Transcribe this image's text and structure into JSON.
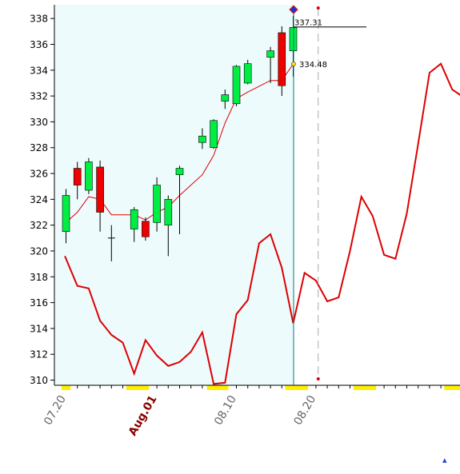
{
  "chart_data": {
    "type": "candlestick",
    "y_axis": {
      "min": 309.6,
      "max": 339.0,
      "ticks": [
        310,
        312,
        314,
        316,
        318,
        320,
        322,
        324,
        326,
        328,
        330,
        332,
        334,
        336,
        338
      ]
    },
    "x_labels": [
      {
        "text": "07.20",
        "slot": 0,
        "emphasis": false
      },
      {
        "text": "Aug.01",
        "slot": 8,
        "emphasis": true
      },
      {
        "text": "08.10",
        "slot": 15,
        "emphasis": false
      },
      {
        "text": "08.20",
        "slot": 22,
        "emphasis": false
      }
    ],
    "candles": [
      {
        "slot": 0,
        "open": 321.5,
        "high": 324.8,
        "low": 320.6,
        "close": 324.3
      },
      {
        "slot": 1,
        "open": 326.4,
        "high": 326.9,
        "low": 324.0,
        "close": 325.1
      },
      {
        "slot": 2,
        "open": 324.7,
        "high": 327.2,
        "low": 324.4,
        "close": 326.9
      },
      {
        "slot": 3,
        "open": 326.5,
        "high": 327.0,
        "low": 321.5,
        "close": 323.0
      },
      {
        "slot": 4,
        "open": 321.0,
        "high": 322.0,
        "low": 319.2,
        "close": 321.0
      },
      {
        "slot": 6,
        "open": 321.7,
        "high": 323.4,
        "low": 320.7,
        "close": 323.2
      },
      {
        "slot": 7,
        "open": 322.3,
        "high": 322.6,
        "low": 320.8,
        "close": 321.1
      },
      {
        "slot": 8,
        "open": 322.2,
        "high": 325.7,
        "low": 321.5,
        "close": 325.1
      },
      {
        "slot": 9,
        "open": 322.0,
        "high": 324.3,
        "low": 319.6,
        "close": 324.0
      },
      {
        "slot": 10,
        "open": 325.9,
        "high": 326.6,
        "low": 321.3,
        "close": 326.4
      },
      {
        "slot": 12,
        "open": 328.4,
        "high": 329.5,
        "low": 327.9,
        "close": 328.9
      },
      {
        "slot": 13,
        "open": 328.0,
        "high": 330.2,
        "low": 327.9,
        "close": 330.1
      },
      {
        "slot": 14,
        "open": 331.6,
        "high": 332.5,
        "low": 331.0,
        "close": 332.1
      },
      {
        "slot": 15,
        "open": 331.4,
        "high": 334.4,
        "low": 331.2,
        "close": 334.3
      },
      {
        "slot": 16,
        "open": 333.0,
        "high": 334.8,
        "low": 332.9,
        "close": 334.5
      },
      {
        "slot": 18,
        "open": 335.0,
        "high": 335.8,
        "low": 333.0,
        "close": 335.5
      },
      {
        "slot": 19,
        "open": 336.9,
        "high": 337.4,
        "low": 332.0,
        "close": 332.8
      },
      {
        "slot": 20,
        "open": 335.5,
        "high": 338.2,
        "low": 333.5,
        "close": 337.31
      }
    ],
    "moving_average": [
      {
        "slot": 0,
        "value": 322.2
      },
      {
        "slot": 1,
        "value": 323.0
      },
      {
        "slot": 2,
        "value": 324.2
      },
      {
        "slot": 3,
        "value": 324.0
      },
      {
        "slot": 4,
        "value": 322.8
      },
      {
        "slot": 6,
        "value": 322.8
      },
      {
        "slot": 7,
        "value": 322.4
      },
      {
        "slot": 8,
        "value": 323.0
      },
      {
        "slot": 9,
        "value": 323.4
      },
      {
        "slot": 10,
        "value": 324.3
      },
      {
        "slot": 12,
        "value": 325.9
      },
      {
        "slot": 13,
        "value": 327.4
      },
      {
        "slot": 14,
        "value": 329.9
      },
      {
        "slot": 15,
        "value": 331.8
      },
      {
        "slot": 16,
        "value": 332.3
      },
      {
        "slot": 18,
        "value": 333.2
      },
      {
        "slot": 19,
        "value": 333.2
      },
      {
        "slot": 20,
        "value": 334.48
      }
    ],
    "lower_line": [
      {
        "slot": -0.1,
        "value": 319.6
      },
      {
        "slot": 1,
        "value": 317.3
      },
      {
        "slot": 2,
        "value": 317.1
      },
      {
        "slot": 3,
        "value": 314.6
      },
      {
        "slot": 4,
        "value": 313.5
      },
      {
        "slot": 5,
        "value": 312.9
      },
      {
        "slot": 6,
        "value": 310.5
      },
      {
        "slot": 7,
        "value": 313.1
      },
      {
        "slot": 8,
        "value": 311.9
      },
      {
        "slot": 9,
        "value": 311.1
      },
      {
        "slot": 10,
        "value": 311.4
      },
      {
        "slot": 11,
        "value": 312.2
      },
      {
        "slot": 12,
        "value": 313.7
      },
      {
        "slot": 13,
        "value": 309.7
      },
      {
        "slot": 14,
        "value": 309.8
      },
      {
        "slot": 15,
        "value": 315.1
      },
      {
        "slot": 16,
        "value": 316.2
      },
      {
        "slot": 17,
        "value": 320.6
      },
      {
        "slot": 18,
        "value": 321.3
      },
      {
        "slot": 19,
        "value": 318.7
      },
      {
        "slot": 20,
        "value": 314.4
      },
      {
        "slot": 21,
        "value": 318.3
      },
      {
        "slot": 22,
        "value": 317.7
      },
      {
        "slot": 23,
        "value": 316.1
      },
      {
        "slot": 24,
        "value": 316.4
      },
      {
        "slot": 25,
        "value": 320.0
      },
      {
        "slot": 26,
        "value": 324.2
      },
      {
        "slot": 27,
        "value": 322.7
      },
      {
        "slot": 28,
        "value": 319.7
      },
      {
        "slot": 29,
        "value": 319.4
      },
      {
        "slot": 30,
        "value": 322.9
      },
      {
        "slot": 31,
        "value": 328.3
      },
      {
        "slot": 32,
        "value": 333.8
      },
      {
        "slot": 33,
        "value": 334.5
      },
      {
        "slot": 34,
        "value": 332.5
      },
      {
        "slot": 35,
        "value": 331.9
      }
    ],
    "annotations": {
      "last_close_label": "337.31",
      "ma_label": "334.48",
      "cursor_slot": 20,
      "forecast_slot": 22.2
    },
    "colors": {
      "up": "#00ee44",
      "down": "#ee0000",
      "ma_line": "#dd0000",
      "lower_line": "#dd0000",
      "plot_bg": "#eefbfd",
      "cursor": "#007777",
      "marker_yellow": "#ffee00",
      "label_emphasis": "#880000",
      "label_normal": "#666666"
    }
  }
}
